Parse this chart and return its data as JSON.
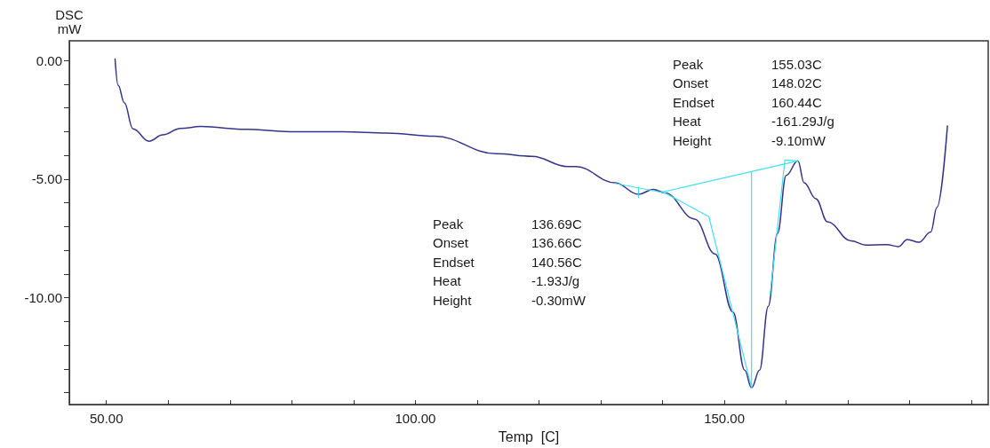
{
  "chart_data": {
    "type": "line",
    "xlabel": "Temp  [C]",
    "ylabel": "DSC\nmW",
    "xlim": [
      44,
      192.7
    ],
    "ylim": [
      -14.5,
      0.83
    ],
    "xticks": [
      {
        "value": 50,
        "label": "50.00"
      },
      {
        "value": 60,
        "label": null
      },
      {
        "value": 70,
        "label": null
      },
      {
        "value": 80,
        "label": null
      },
      {
        "value": 90,
        "label": null
      },
      {
        "value": 100,
        "label": "100.00"
      },
      {
        "value": 110,
        "label": null
      },
      {
        "value": 120,
        "label": null
      },
      {
        "value": 130,
        "label": null
      },
      {
        "value": 140,
        "label": null
      },
      {
        "value": 150,
        "label": "150.00"
      },
      {
        "value": 160,
        "label": null
      },
      {
        "value": 170,
        "label": null
      },
      {
        "value": 180,
        "label": null
      },
      {
        "value": 190,
        "label": null
      }
    ],
    "yticks": [
      {
        "value": 0,
        "label": "0.00"
      },
      {
        "value": -1,
        "label": null
      },
      {
        "value": -2,
        "label": null
      },
      {
        "value": -3,
        "label": null
      },
      {
        "value": -4,
        "label": null
      },
      {
        "value": -5,
        "label": "-5.00"
      },
      {
        "value": -6,
        "label": null
      },
      {
        "value": -7,
        "label": null
      },
      {
        "value": -8,
        "label": null
      },
      {
        "value": -9,
        "label": null
      },
      {
        "value": -10,
        "label": "-10.00"
      },
      {
        "value": -11,
        "label": null
      },
      {
        "value": -12,
        "label": null
      },
      {
        "value": -13,
        "label": null
      },
      {
        "value": -14,
        "label": null
      }
    ],
    "grid": false,
    "marker": "none",
    "line_style": "solid",
    "series": [
      {
        "color": "#34348a",
        "x": [
          51.4,
          51.9,
          52.9,
          54.3,
          56.9,
          59.1,
          62.0,
          65.3,
          72.5,
          79.7,
          88.3,
          95.4,
          103.1,
          113.1,
          118.9,
          124.6,
          126.0,
          132.3,
          136.1,
          138.5,
          140.4,
          145.2,
          148.5,
          151.4,
          153.3,
          154.4,
          155.7,
          157.1,
          158.6,
          160.0,
          161.9,
          162.9,
          164.8,
          166.7,
          170.5,
          172.9,
          176.3,
          178.2,
          179.6,
          181.5,
          183.4,
          184.4,
          186.1
        ],
        "values": [
          0.06,
          -1.04,
          -1.78,
          -2.88,
          -3.4,
          -3.13,
          -2.86,
          -2.78,
          -2.9,
          -3.0,
          -3.0,
          -3.06,
          -3.19,
          -3.93,
          -4.04,
          -4.47,
          -4.47,
          -5.15,
          -5.64,
          -5.43,
          -5.58,
          -6.68,
          -8.15,
          -10.6,
          -13.05,
          -13.79,
          -13.05,
          -10.36,
          -7.29,
          -4.84,
          -4.23,
          -5.15,
          -5.82,
          -6.8,
          -7.6,
          -7.78,
          -7.76,
          -7.84,
          -7.54,
          -7.66,
          -7.23,
          -6.19,
          -2.76
        ]
      },
      {
        "color": "#40e0f0",
        "x": [
          132.3,
          140.4
        ],
        "values": [
          -5.18,
          -5.58
        ]
      },
      {
        "color": "#40e0f0",
        "x": [
          136.1,
          136.1
        ],
        "values": [
          -5.33,
          -5.76
        ]
      },
      {
        "color": "#40e0f0",
        "x": [
          139.9,
          161.9
        ],
        "values": [
          -5.55,
          -4.23
        ]
      },
      {
        "color": "#40e0f0",
        "x": [
          154.4,
          154.4
        ],
        "values": [
          -4.72,
          -13.79
        ]
      },
      {
        "color": "#40e0f0",
        "x": [
          139.9,
          147.5,
          154.4
        ],
        "values": [
          -5.51,
          -6.58,
          -13.79
        ]
      },
      {
        "color": "#40e0f0",
        "x": [
          157.4,
          159.8,
          161.9
        ],
        "values": [
          -9.87,
          -4.19,
          -4.23
        ]
      }
    ],
    "annotations": [
      "Peak",
      "155.03C",
      "Onset",
      "148.02C",
      "Endset",
      "160.44C",
      "Heat",
      "-161.29J/g",
      "Height",
      "-9.10mW",
      "Peak",
      "136.69C",
      "Onset",
      "136.66C",
      "Endset",
      "140.56C",
      "Heat",
      "-1.93J/g",
      "Height",
      "-0.30mW"
    ]
  }
}
